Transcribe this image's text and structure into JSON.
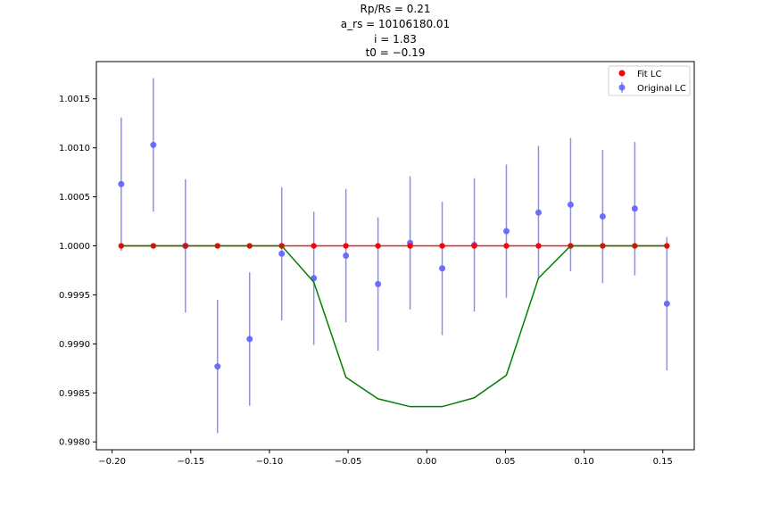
{
  "chart_data": {
    "type": "scatter",
    "title_lines": [
      "Rp/Rs = 0.21",
      "a_rs = 10106180.01",
      "i = 1.83",
      "t0 = −0.19"
    ],
    "xlabel": "",
    "ylabel": "",
    "xlim": [
      -0.21,
      0.17
    ],
    "ylim": [
      0.99792,
      1.00188
    ],
    "x_ticks": [
      -0.2,
      -0.15,
      -0.1,
      -0.05,
      0.0,
      0.05,
      0.1,
      0.15
    ],
    "x_tick_labels": [
      "−0.20",
      "−0.15",
      "−0.10",
      "−0.05",
      "0.00",
      "0.05",
      "0.10",
      "0.15"
    ],
    "y_ticks": [
      0.998,
      0.9985,
      0.999,
      0.9995,
      1.0,
      1.0005,
      1.001,
      1.0015
    ],
    "y_tick_labels": [
      "0.9980",
      "0.9985",
      "0.9990",
      "0.9995",
      "1.0000",
      "1.0005",
      "1.0010",
      "1.0015"
    ],
    "grid": false,
    "legend_position": "top-right",
    "x": [
      -0.1942,
      -0.1738,
      -0.1534,
      -0.133,
      -0.1126,
      -0.0922,
      -0.0718,
      -0.0514,
      -0.031,
      -0.0106,
      0.0098,
      0.0302,
      0.0506,
      0.071,
      0.0914,
      0.1118,
      0.1322,
      0.1526
    ],
    "series": [
      {
        "name": "Fit LC",
        "kind": "points-with-line",
        "color": "#ff0000",
        "line_color": "#d62728",
        "values": [
          1.0,
          1.0,
          1.0,
          1.0,
          1.0,
          1.0,
          1.0,
          1.0,
          1.0,
          1.0,
          1.0,
          1.0,
          1.0,
          1.0,
          1.0,
          1.0,
          1.0,
          1.0
        ]
      },
      {
        "name": "Original LC",
        "kind": "errorbar",
        "color": "#6666ff",
        "values": [
          1.00063,
          1.00103,
          1.0,
          0.99877,
          0.99905,
          0.99992,
          0.99967,
          0.9999,
          0.99961,
          1.00003,
          0.99977,
          1.00001,
          1.00015,
          1.00034,
          1.00042,
          1.0003,
          1.00038,
          0.99941
        ],
        "errors": [
          0.00068,
          0.00068,
          0.00068,
          0.00068,
          0.00068,
          0.00068,
          0.00068,
          0.00068,
          0.00068,
          0.00068,
          0.00068,
          0.00068,
          0.00068,
          0.00068,
          0.00068,
          0.00068,
          0.00068,
          0.00068
        ]
      },
      {
        "name": "",
        "kind": "line",
        "color": "#008000",
        "values": [
          1.0,
          1.0,
          1.0,
          1.0,
          1.0,
          1.0,
          0.99963,
          0.99866,
          0.99844,
          0.99836,
          0.99836,
          0.99845,
          0.99868,
          0.99967,
          1.0,
          1.0,
          1.0,
          1.0
        ]
      }
    ]
  }
}
